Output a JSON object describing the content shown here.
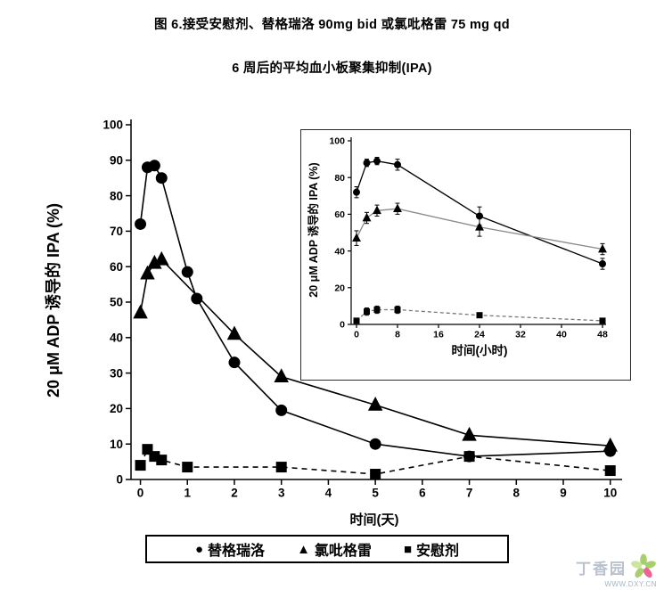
{
  "title": {
    "line1": "图 6.接受安慰剂、替格瑞洛 90mg bid 或氯吡格雷 75 mg qd",
    "line2": "6 周后的平均血小板聚集抑制(IPA)"
  },
  "legend": {
    "items": [
      {
        "glyph": "●",
        "label": "替格瑞洛"
      },
      {
        "glyph": "▲",
        "label": "氯吡格雷"
      },
      {
        "glyph": "■",
        "label": "安慰剂"
      }
    ]
  },
  "watermark": {
    "name": "丁香园",
    "url": "WWW.DXY.CN",
    "green": "#a8cf6e",
    "pink": "#f06292"
  },
  "chart_data": [
    {
      "id": "main",
      "type": "line",
      "title": "",
      "xlabel": "时间(天)",
      "ylabel": "20 μM ADP 诱导的 IPA (%)",
      "xlim": [
        -0.2,
        10.1
      ],
      "ylim": [
        0,
        100
      ],
      "xticks": [
        0,
        1,
        2,
        3,
        4,
        5,
        6,
        7,
        8,
        9,
        10
      ],
      "yticks": [
        0,
        10,
        20,
        30,
        40,
        50,
        60,
        70,
        80,
        90,
        100
      ],
      "grid": false,
      "legend_position": "bottom",
      "series": [
        {
          "name": "替格瑞洛",
          "marker": "circle",
          "line": "solid",
          "color": "#000000",
          "x": [
            0,
            0.15,
            0.3,
            0.45,
            1,
            1.2,
            2,
            3,
            5,
            7,
            10
          ],
          "y": [
            72,
            88,
            88.5,
            85,
            58.5,
            51,
            33,
            19.5,
            10,
            6.5,
            8
          ]
        },
        {
          "name": "氯吡格雷",
          "marker": "triangle",
          "line": "solid",
          "color": "#000000",
          "x": [
            0,
            0.15,
            0.3,
            0.45,
            2,
            3,
            5,
            7,
            10
          ],
          "y": [
            47,
            58,
            61,
            62,
            41,
            29,
            21,
            12.5,
            9.5
          ]
        },
        {
          "name": "安慰剂",
          "marker": "square",
          "line": "dashed",
          "color": "#000000",
          "x": [
            0,
            0.15,
            0.3,
            0.45,
            1,
            3,
            5,
            7,
            10
          ],
          "y": [
            4,
            8.5,
            6.5,
            5.5,
            3.5,
            3.5,
            1.5,
            6.5,
            2.5
          ]
        }
      ]
    },
    {
      "id": "inset",
      "type": "line",
      "title": "",
      "xlabel": "时间(小时)",
      "ylabel": "20 μM ADP 诱导的 IPA (%)",
      "xlim": [
        0,
        48
      ],
      "ylim": [
        0,
        100
      ],
      "xticks": [
        0,
        8,
        16,
        24,
        32,
        40,
        48
      ],
      "yticks": [
        0,
        20,
        40,
        60,
        80,
        100
      ],
      "grid": false,
      "series": [
        {
          "name": "替格瑞洛",
          "marker": "circle",
          "line": "solid",
          "color": "#000000",
          "x": [
            0,
            2,
            4,
            8,
            24,
            48
          ],
          "y": [
            72,
            88,
            89,
            87,
            59,
            33
          ],
          "err": [
            3,
            2,
            2,
            3,
            5,
            3
          ]
        },
        {
          "name": "氯吡格雷",
          "marker": "triangle",
          "line": "solid",
          "color": "#8a8a8a",
          "x": [
            0,
            2,
            4,
            8,
            24,
            48
          ],
          "y": [
            47,
            58,
            62,
            63,
            53,
            41
          ],
          "err": [
            4,
            3,
            3,
            3,
            5,
            3
          ]
        },
        {
          "name": "安慰剂",
          "marker": "square",
          "line": "dashed",
          "color": "#777777",
          "x": [
            0,
            2,
            4,
            8,
            24,
            48
          ],
          "y": [
            2,
            7,
            8,
            8,
            5,
            2
          ],
          "err": [
            1,
            2,
            2,
            2,
            1,
            1
          ]
        }
      ]
    }
  ]
}
